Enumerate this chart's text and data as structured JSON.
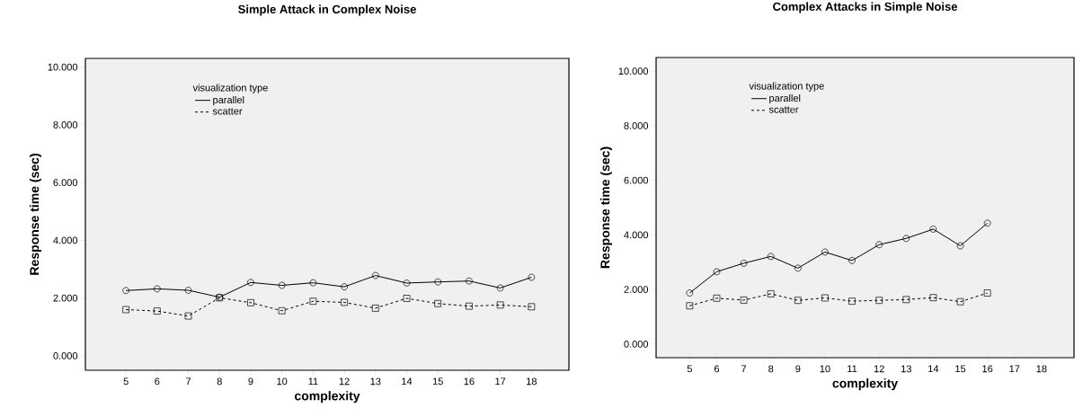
{
  "chart_data": [
    {
      "type": "line",
      "title": "Simple Attack in Complex Noise",
      "xlabel": "complexity",
      "ylabel": "Response time (sec)",
      "legend_title": "visualization type",
      "legend": "top left",
      "grid": false,
      "xlim": [
        3.7,
        19.2
      ],
      "xticks": [
        5,
        6,
        7,
        8,
        9,
        10,
        11,
        12,
        13,
        14,
        15,
        16,
        17,
        18
      ],
      "ylim": [
        -0.5,
        10.3
      ],
      "yticks": [
        {
          "value": 0,
          "label": "0.000"
        },
        {
          "value": 2,
          "label": "2.000"
        },
        {
          "value": 4,
          "label": "4.000"
        },
        {
          "value": 6,
          "label": "6.000"
        },
        {
          "value": 8,
          "label": "8.000"
        },
        {
          "value": 10,
          "label": "10.000"
        }
      ],
      "series": [
        {
          "name": "parallel",
          "color": "#000000",
          "marker": "circle",
          "line_style": "solid",
          "x": [
            5,
            6,
            7,
            8,
            9,
            10,
            11,
            12,
            13,
            14,
            15,
            16,
            17,
            18
          ],
          "values": [
            2.26,
            2.32,
            2.27,
            2.03,
            2.54,
            2.44,
            2.53,
            2.39,
            2.78,
            2.52,
            2.56,
            2.59,
            2.35,
            2.72
          ]
        },
        {
          "name": "scatter",
          "color": "#000000",
          "marker": "square",
          "line_style": "dashed",
          "x": [
            5,
            6,
            7,
            8,
            9,
            10,
            11,
            12,
            13,
            14,
            15,
            16,
            17,
            18
          ],
          "values": [
            1.6,
            1.55,
            1.38,
            2.01,
            1.84,
            1.56,
            1.89,
            1.85,
            1.65,
            1.99,
            1.81,
            1.72,
            1.76,
            1.7
          ]
        }
      ]
    },
    {
      "type": "line",
      "title": "Complex Attacks in Simple Noise",
      "xlabel": "complexity",
      "ylabel": "Response time (sec)",
      "legend_title": "visualization type",
      "legend": "top left",
      "grid": false,
      "xlim": [
        3.76,
        19.2
      ],
      "xticks": [
        5,
        6,
        7,
        8,
        9,
        10,
        11,
        12,
        13,
        14,
        15,
        16,
        17,
        18
      ],
      "ylim": [
        -0.5,
        10.5
      ],
      "yticks": [
        {
          "value": 0,
          "label": "0.000"
        },
        {
          "value": 2,
          "label": "2.000"
        },
        {
          "value": 4,
          "label": "4.000"
        },
        {
          "value": 6,
          "label": "6.000"
        },
        {
          "value": 8,
          "label": "8.000"
        },
        {
          "value": 10,
          "label": "10.000"
        }
      ],
      "series": [
        {
          "name": "parallel",
          "color": "#000000",
          "marker": "circle",
          "line_style": "solid",
          "x": [
            5,
            6,
            7,
            8,
            9,
            10,
            11,
            12,
            13,
            14,
            15,
            16
          ],
          "values": [
            1.87,
            2.65,
            2.96,
            3.21,
            2.78,
            3.37,
            3.06,
            3.64,
            3.87,
            4.21,
            3.6,
            4.43
          ]
        },
        {
          "name": "scatter",
          "color": "#000000",
          "marker": "square",
          "line_style": "dashed",
          "x": [
            5,
            6,
            7,
            8,
            9,
            10,
            11,
            12,
            13,
            14,
            15,
            16
          ],
          "values": [
            1.4,
            1.68,
            1.61,
            1.84,
            1.6,
            1.69,
            1.57,
            1.6,
            1.63,
            1.7,
            1.55,
            1.87
          ]
        }
      ]
    }
  ]
}
